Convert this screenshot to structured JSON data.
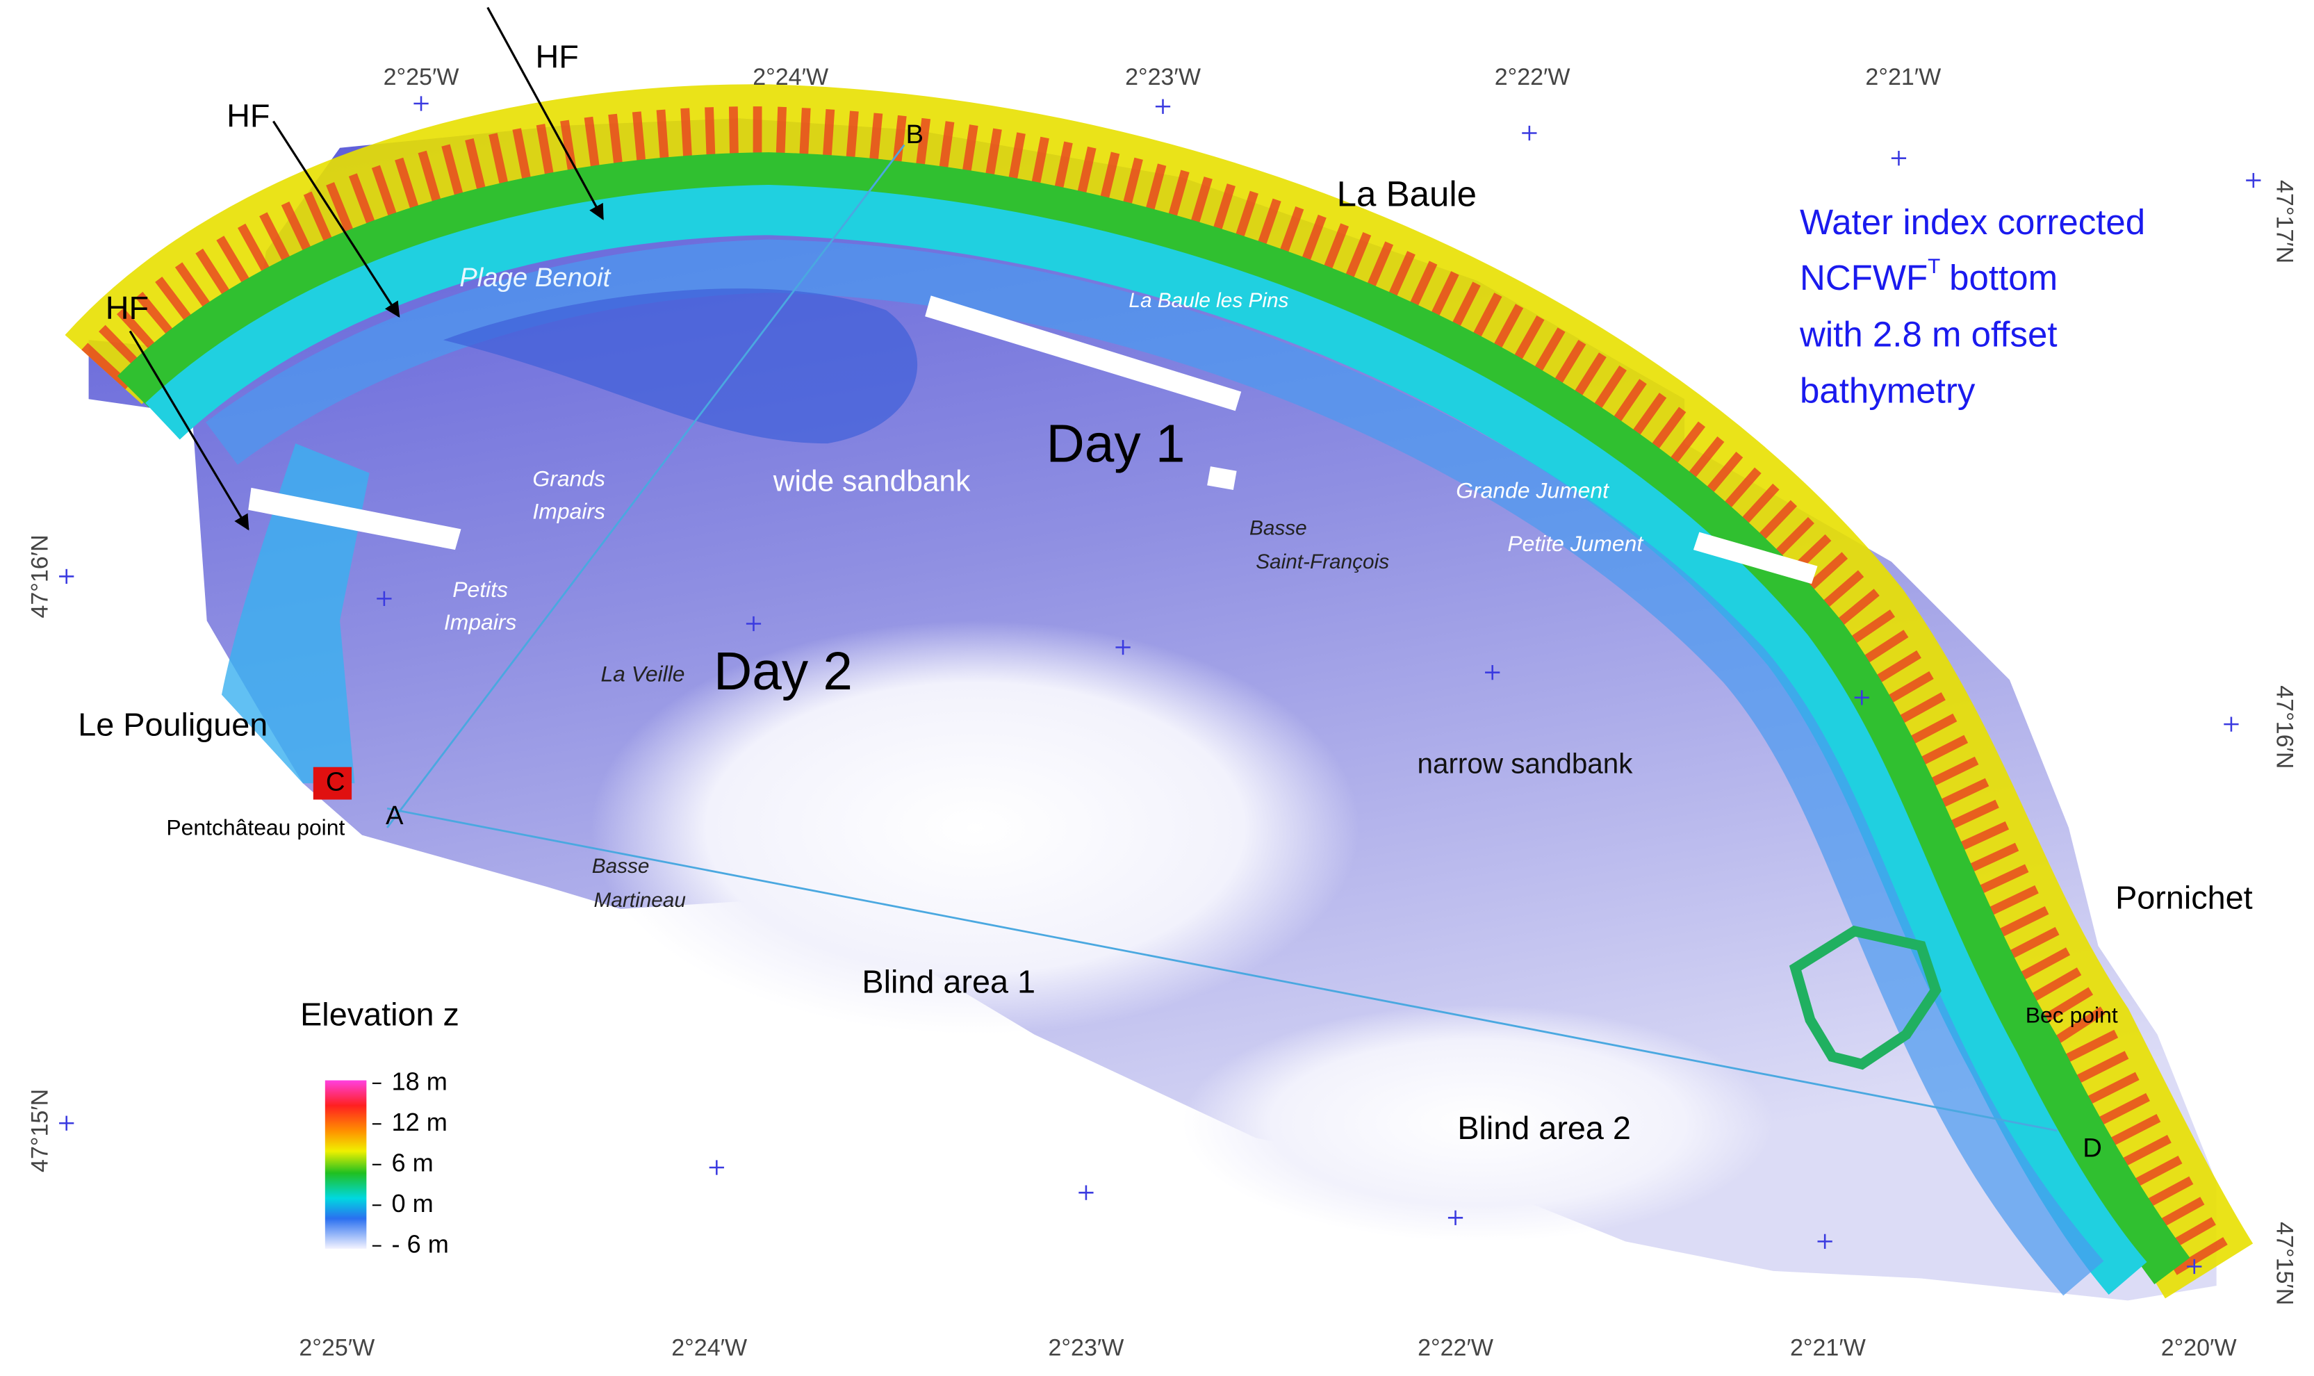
{
  "note": {
    "line1": "Water index corrected",
    "line2": "NCFWF",
    "line2_sup": "T",
    "line2_end": "bottom",
    "line3": "with 2.8 m offset",
    "line4": "bathymetry"
  },
  "axes": {
    "top": [
      "2°25′W",
      "2°24′W",
      "2°23′W",
      "2°22′W",
      "2°21′W"
    ],
    "bottom": [
      "2°25′W",
      "2°24′W",
      "2°23′W",
      "2°22′W",
      "2°21′W",
      "2°20′W"
    ],
    "left": [
      "47°16′N",
      "47°15′N"
    ],
    "right": [
      "47°17′N",
      "47°16′N",
      "47°15′N"
    ]
  },
  "labels": [
    "HF",
    "HF",
    "HF",
    "B",
    "A",
    "C",
    "D",
    "La Baule",
    "Plage Benoit",
    "La Baule les Pins",
    "Day 1",
    "wide sandbank",
    "Grands",
    "Impairs",
    "Petits",
    "Impairs",
    "Basse",
    "Saint-François",
    "Grande Jument",
    "Petite Jument",
    "La Veille",
    "Day 2",
    "Le Pouliguen",
    "narrow sandbank",
    "Pentchâteau point",
    "Basse",
    "Martineau",
    "Pornichet",
    "Blind area 1",
    "Bec point",
    "Blind area 2"
  ],
  "legend": {
    "title": "Elevation z",
    "ticks": [
      {
        "value": 18,
        "label": "18 m"
      },
      {
        "value": 12,
        "label": "12 m"
      },
      {
        "value": 6,
        "label": "6 m"
      },
      {
        "value": 0,
        "label": "0 m"
      },
      {
        "value": -6,
        "label": "- 6 m"
      }
    ]
  }
}
